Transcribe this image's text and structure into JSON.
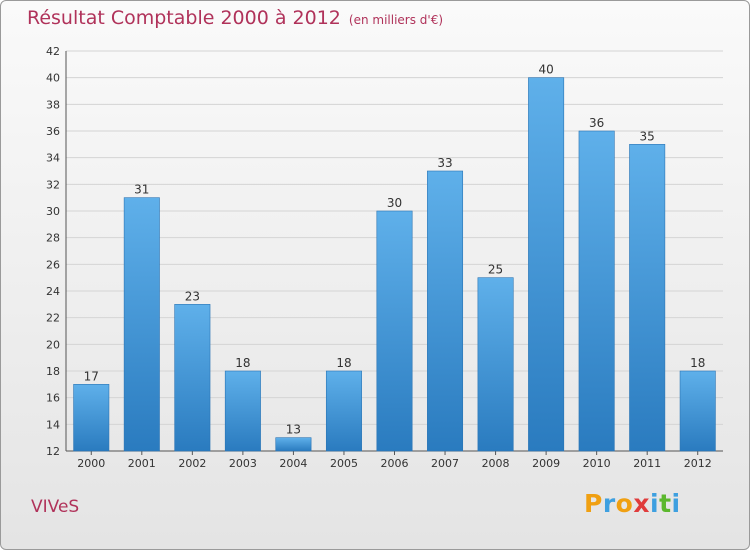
{
  "header": {
    "title": "Résultat Comptable 2000 à 2012",
    "subtitle": "(en milliers d'€)"
  },
  "footer": {
    "town": "VIVeS",
    "logo_text": "Proxiti",
    "logo_letters": [
      "P",
      "r",
      "o",
      "x",
      "i",
      "t",
      "i"
    ]
  },
  "colors": {
    "title": "#b0325a",
    "bar_top": "#5fb0ea",
    "bar_bottom": "#2a7bbf",
    "logo": [
      "#f0a012",
      "#3ea0e0",
      "#f0a012",
      "#e03c3c",
      "#3ea0e0",
      "#5cb82e",
      "#3ea0e0"
    ]
  },
  "chart_data": {
    "type": "bar",
    "title": "Résultat Comptable 2000 à 2012",
    "subtitle": "(en milliers d'€)",
    "xlabel": "",
    "ylabel": "",
    "categories": [
      "2000",
      "2001",
      "2002",
      "2003",
      "2004",
      "2005",
      "2006",
      "2007",
      "2008",
      "2009",
      "2010",
      "2011",
      "2012"
    ],
    "values": [
      17,
      31,
      23,
      18,
      13,
      18,
      30,
      33,
      25,
      40,
      36,
      35,
      18
    ],
    "ylim": [
      12,
      42
    ],
    "yticks": [
      12,
      14,
      16,
      18,
      20,
      22,
      24,
      26,
      28,
      30,
      32,
      34,
      36,
      38,
      40,
      42
    ],
    "grid": true,
    "legend": "none"
  }
}
